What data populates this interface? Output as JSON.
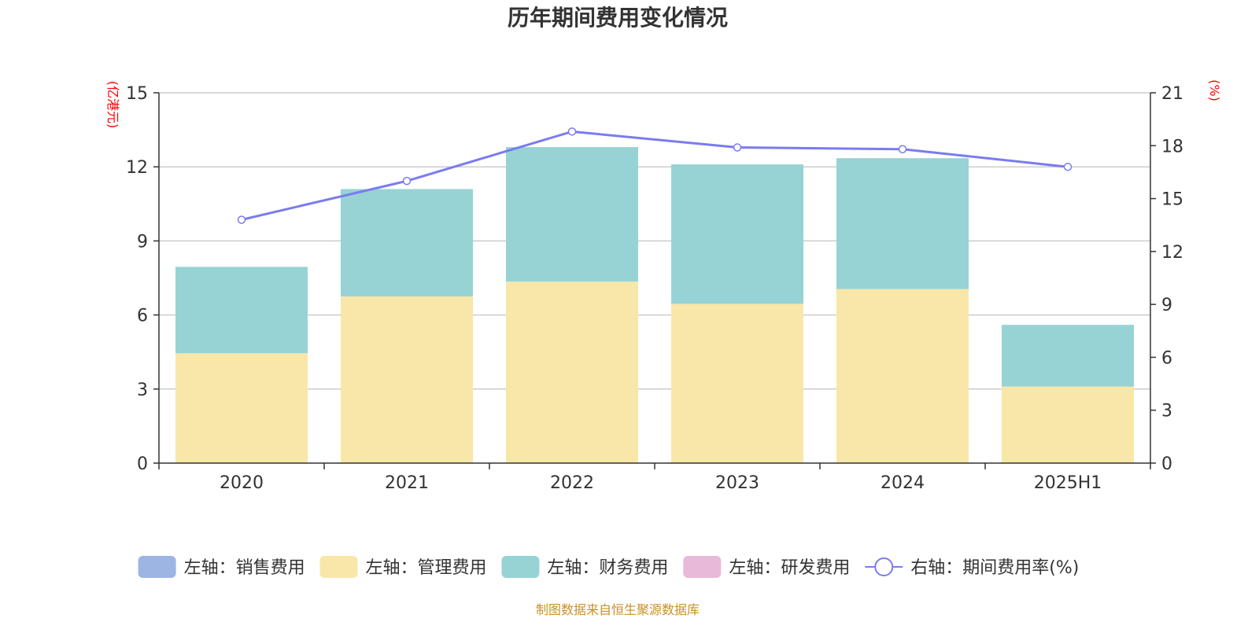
{
  "chart_data": {
    "type": "bar",
    "title": "历年期间费用变化情况",
    "left_axis_unit": "(亿港元)",
    "right_axis_unit": "(%)",
    "categories": [
      "2020",
      "2021",
      "2022",
      "2023",
      "2024",
      "2025H1"
    ],
    "left_axis": {
      "min": 0,
      "max": 15,
      "ticks": [
        0,
        3,
        6,
        9,
        12,
        15
      ]
    },
    "right_axis": {
      "min": 0,
      "max": 21,
      "ticks": [
        0,
        3,
        6,
        9,
        12,
        15,
        18,
        21
      ]
    },
    "grid": true,
    "legend_placement": "bottom",
    "series": [
      {
        "name": "左轴：销售费用",
        "kind": "bar",
        "axis": "left",
        "color": "#9db5e3",
        "values": [
          0,
          0,
          0,
          0,
          0,
          0
        ]
      },
      {
        "name": "左轴：管理费用",
        "kind": "bar",
        "axis": "left",
        "color": "#f8e7a8",
        "values": [
          4.45,
          6.75,
          7.35,
          6.45,
          7.05,
          3.1
        ]
      },
      {
        "name": "左轴：财务费用",
        "kind": "bar",
        "axis": "left",
        "color": "#97d3d4",
        "values": [
          3.5,
          4.35,
          5.45,
          5.65,
          5.3,
          2.5
        ]
      },
      {
        "name": "左轴：研发费用",
        "kind": "bar",
        "axis": "left",
        "color": "#e8b9d9",
        "values": [
          0,
          0,
          0,
          0,
          0,
          0
        ]
      },
      {
        "name": "右轴：期间费用率(%)",
        "kind": "line",
        "axis": "right",
        "color": "#7b7bef",
        "values": [
          13.8,
          16.0,
          18.8,
          17.9,
          17.8,
          16.8
        ]
      }
    ],
    "source": "制图数据来自恒生聚源数据库"
  }
}
